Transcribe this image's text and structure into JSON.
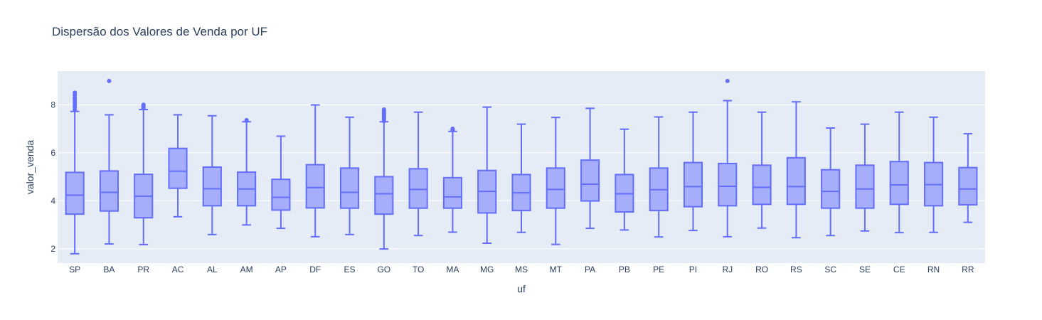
{
  "chart_data": {
    "type": "box",
    "title": "Dispersão dos Valores de Venda por UF",
    "xlabel": "uf",
    "ylabel": "valor_venda",
    "ylim": [
      1.4,
      9.4
    ],
    "yticks": [
      2,
      4,
      6,
      8
    ],
    "grid": true,
    "colors": {
      "plot_bg": "#e5ecf6",
      "grid": "#ffffff",
      "box_line": "#636efa",
      "box_fill": "#a6aefc",
      "text": "#2a3f5f"
    },
    "categories": [
      "SP",
      "BA",
      "PR",
      "AC",
      "AL",
      "AM",
      "AP",
      "DF",
      "ES",
      "GO",
      "TO",
      "MA",
      "MG",
      "MS",
      "MT",
      "PA",
      "PB",
      "PE",
      "PI",
      "RJ",
      "RO",
      "RS",
      "SC",
      "SE",
      "CE",
      "RN",
      "RR"
    ],
    "boxes": [
      {
        "uf": "SP",
        "min": 1.79,
        "q1": 3.44,
        "median": 4.23,
        "q3": 5.18,
        "max": 7.72,
        "outliers": [
          7.8,
          7.9,
          8.0,
          8.1,
          8.2,
          8.3,
          8.4,
          8.5
        ]
      },
      {
        "uf": "BA",
        "min": 2.2,
        "q1": 3.57,
        "median": 4.35,
        "q3": 5.24,
        "max": 7.58,
        "outliers": [
          8.99
        ]
      },
      {
        "uf": "PR",
        "min": 2.17,
        "q1": 3.29,
        "median": 4.19,
        "q3": 5.1,
        "max": 7.8,
        "outliers": [
          7.85,
          7.9,
          7.95,
          8.0
        ]
      },
      {
        "uf": "AC",
        "min": 3.33,
        "q1": 4.52,
        "median": 5.23,
        "q3": 6.18,
        "max": 7.58,
        "outliers": []
      },
      {
        "uf": "AL",
        "min": 2.59,
        "q1": 3.79,
        "median": 4.5,
        "q3": 5.4,
        "max": 7.54,
        "outliers": []
      },
      {
        "uf": "AM",
        "min": 2.99,
        "q1": 3.79,
        "median": 4.49,
        "q3": 5.19,
        "max": 7.29,
        "outliers": [
          7.33,
          7.36
        ]
      },
      {
        "uf": "AP",
        "min": 2.85,
        "q1": 3.61,
        "median": 4.14,
        "q3": 4.89,
        "max": 6.69,
        "outliers": []
      },
      {
        "uf": "DF",
        "min": 2.5,
        "q1": 3.7,
        "median": 4.55,
        "q3": 5.5,
        "max": 7.99,
        "outliers": []
      },
      {
        "uf": "ES",
        "min": 2.59,
        "q1": 3.69,
        "median": 4.35,
        "q3": 5.36,
        "max": 7.48,
        "outliers": []
      },
      {
        "uf": "GO",
        "min": 1.99,
        "q1": 3.44,
        "median": 4.29,
        "q3": 5.0,
        "max": 7.29,
        "outliers": [
          7.32,
          7.4,
          7.45,
          7.5,
          7.55,
          7.6,
          7.65,
          7.7,
          7.75,
          7.8
        ]
      },
      {
        "uf": "TO",
        "min": 2.55,
        "q1": 3.69,
        "median": 4.47,
        "q3": 5.33,
        "max": 7.69,
        "outliers": []
      },
      {
        "uf": "MA",
        "min": 2.69,
        "q1": 3.69,
        "median": 4.16,
        "q3": 4.96,
        "max": 6.89,
        "outliers": [
          6.93,
          6.97,
          7.0
        ]
      },
      {
        "uf": "MG",
        "min": 2.23,
        "q1": 3.49,
        "median": 4.39,
        "q3": 5.26,
        "max": 7.9,
        "outliers": []
      },
      {
        "uf": "MS",
        "min": 2.68,
        "q1": 3.59,
        "median": 4.33,
        "q3": 5.09,
        "max": 7.19,
        "outliers": []
      },
      {
        "uf": "MT",
        "min": 2.18,
        "q1": 3.69,
        "median": 4.47,
        "q3": 5.36,
        "max": 7.47,
        "outliers": []
      },
      {
        "uf": "PA",
        "min": 2.85,
        "q1": 3.99,
        "median": 4.69,
        "q3": 5.69,
        "max": 7.85,
        "outliers": []
      },
      {
        "uf": "PB",
        "min": 2.78,
        "q1": 3.53,
        "median": 4.29,
        "q3": 5.09,
        "max": 6.98,
        "outliers": []
      },
      {
        "uf": "PE",
        "min": 2.49,
        "q1": 3.59,
        "median": 4.46,
        "q3": 5.36,
        "max": 7.49,
        "outliers": []
      },
      {
        "uf": "PI",
        "min": 2.76,
        "q1": 3.75,
        "median": 4.59,
        "q3": 5.59,
        "max": 7.69,
        "outliers": []
      },
      {
        "uf": "RJ",
        "min": 2.5,
        "q1": 3.79,
        "median": 4.6,
        "q3": 5.55,
        "max": 8.17,
        "outliers": [
          8.99
        ]
      },
      {
        "uf": "RO",
        "min": 2.86,
        "q1": 3.85,
        "median": 4.56,
        "q3": 5.48,
        "max": 7.69,
        "outliers": []
      },
      {
        "uf": "RS",
        "min": 2.46,
        "q1": 3.85,
        "median": 4.59,
        "q3": 5.79,
        "max": 8.12,
        "outliers": []
      },
      {
        "uf": "SC",
        "min": 2.55,
        "q1": 3.69,
        "median": 4.39,
        "q3": 5.29,
        "max": 7.03,
        "outliers": []
      },
      {
        "uf": "SE",
        "min": 2.74,
        "q1": 3.69,
        "median": 4.49,
        "q3": 5.48,
        "max": 7.19,
        "outliers": []
      },
      {
        "uf": "CE",
        "min": 2.67,
        "q1": 3.85,
        "median": 4.66,
        "q3": 5.63,
        "max": 7.69,
        "outliers": []
      },
      {
        "uf": "RN",
        "min": 2.68,
        "q1": 3.79,
        "median": 4.67,
        "q3": 5.59,
        "max": 7.48,
        "outliers": []
      },
      {
        "uf": "RR",
        "min": 3.1,
        "q1": 3.83,
        "median": 4.49,
        "q3": 5.38,
        "max": 6.79,
        "outliers": []
      }
    ]
  }
}
